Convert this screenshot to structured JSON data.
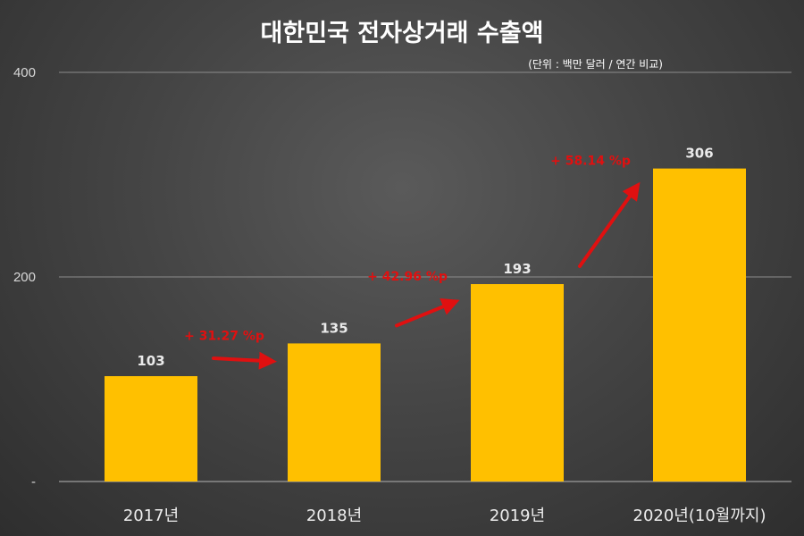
{
  "chart_data": {
    "type": "bar",
    "title": "대한민국 전자상거래 수출액",
    "subtitle": "(단위 : 백만 달러 / 연간 비교)",
    "categories": [
      "2017년",
      "2018년",
      "2019년",
      "2020년(10월까지)"
    ],
    "values": [
      103,
      135,
      193,
      306
    ],
    "ylim": [
      0,
      400
    ],
    "yticks": [
      {
        "value": 400,
        "label": "400"
      },
      {
        "value": 200,
        "label": "200"
      },
      {
        "value": 0,
        "label": "-"
      }
    ],
    "xlabel": "",
    "ylabel": "",
    "grid": true,
    "annotations": [
      {
        "from": 0,
        "to": 1,
        "text": "+ 31.27 %p"
      },
      {
        "from": 1,
        "to": 2,
        "text": "+ 42.96 %p"
      },
      {
        "from": 2,
        "to": 3,
        "text": "+ 58.14 %p"
      }
    ],
    "colors": {
      "bar": "#FFC000",
      "arrow": "#E01010",
      "grid": "#8c8c8c"
    }
  }
}
